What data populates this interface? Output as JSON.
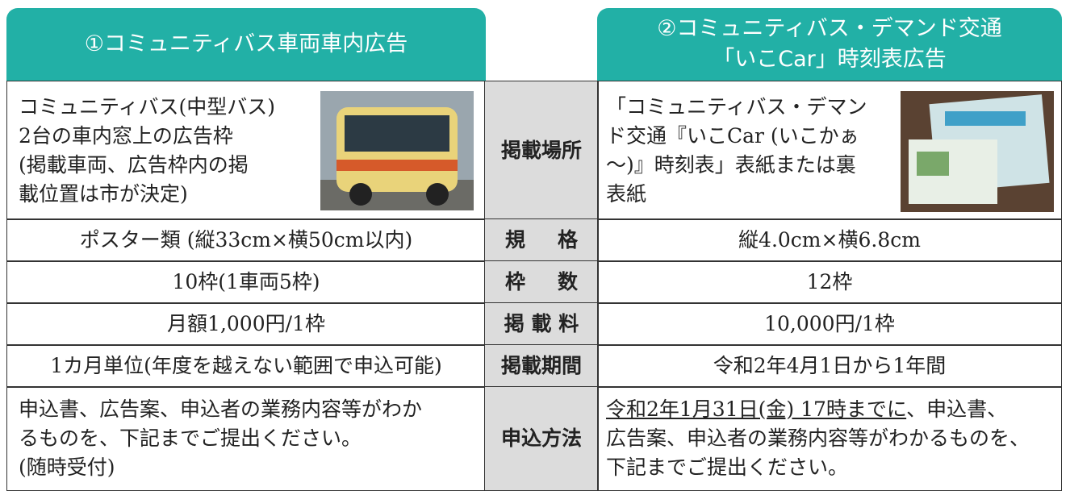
{
  "header": {
    "left": "①コミュニティバス車両車内広告",
    "right": [
      "②コミュニティバス・デマンド交通",
      "「いこCar」時刻表広告"
    ]
  },
  "rows": [
    {
      "label": "掲載場所",
      "left": [
        "コミュニティバス(中型バス)",
        "2台の車内窓上の広告枠",
        "(掲載車両、広告枠内の掲",
        "載位置は市が決定)"
      ],
      "right": [
        "「コミュニティバス・デマン",
        "ド交通『いこCar (いこかぁ",
        "～)』時刻表」表紙または裏",
        "表紙"
      ]
    },
    {
      "label": "規格",
      "left": [
        "ポスター類 (縦33cm×横50cm以内)"
      ],
      "right": [
        "縦4.0cm×横6.8cm"
      ]
    },
    {
      "label": "枠数",
      "left": [
        "10枠(1車両5枠)"
      ],
      "right": [
        "12枠"
      ]
    },
    {
      "label": "掲載料",
      "left": [
        "月額1,000円/1枠"
      ],
      "right": [
        "10,000円/1枠"
      ]
    },
    {
      "label": "掲載期間",
      "left": [
        "1カ月単位(年度を越えない範囲で申込可能)"
      ],
      "right": [
        "令和2年4月1日から1年間"
      ]
    },
    {
      "label": "申込方法",
      "left": [
        "申込書、広告案、申込者の業務内容等がわか",
        "るものを、下記までご提出ください。",
        "(随時受付)"
      ],
      "right": [
        "令和2年1月31日(金) 17時までに",
        "、申込書、",
        "広告案、申込者の業務内容等がわかるものを、",
        "下記までご提出ください。"
      ]
    }
  ]
}
